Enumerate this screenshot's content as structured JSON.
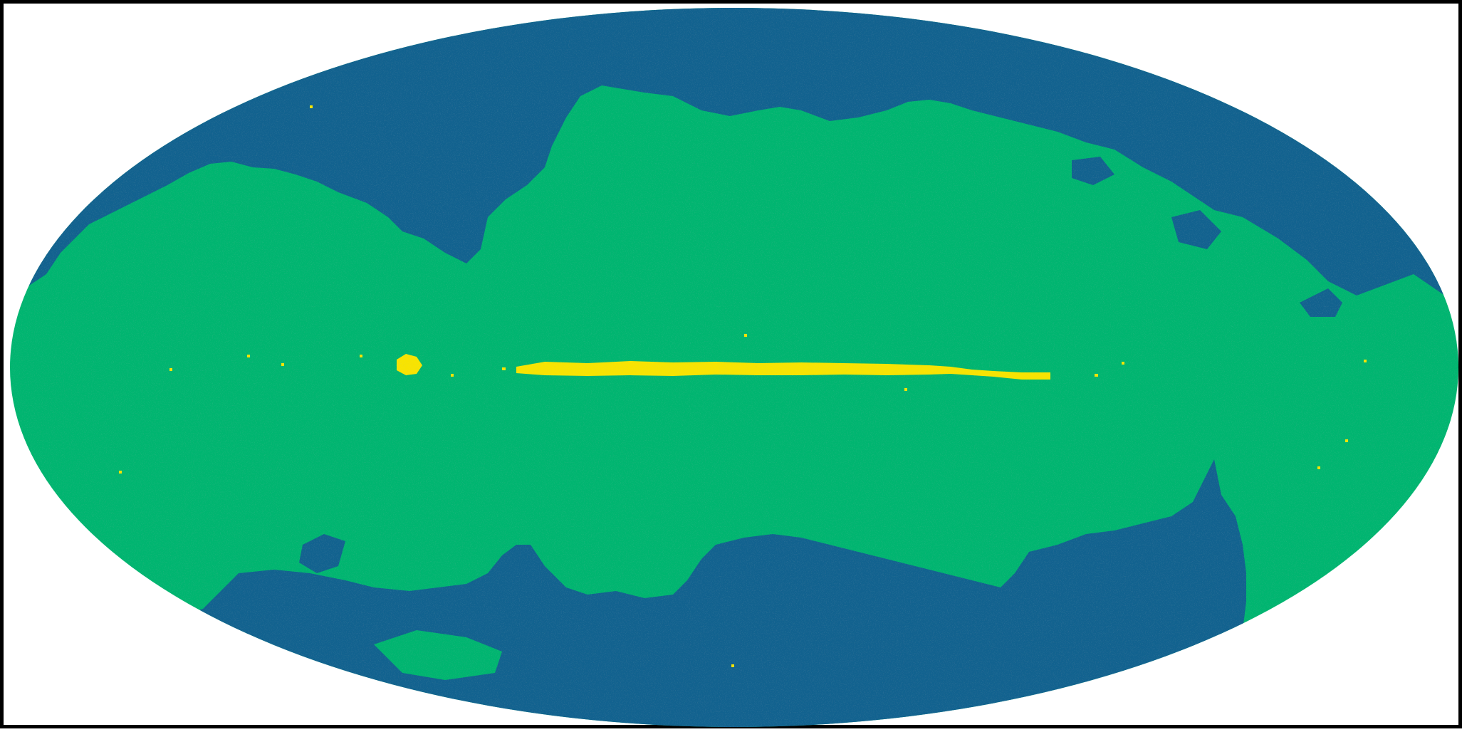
{
  "map": {
    "projection": "mollweide",
    "colors": {
      "background": "#ffffff",
      "frame": "#000000",
      "low": "#12628f",
      "mid": "#00b570",
      "high": "#f8e400"
    },
    "legend": []
  }
}
